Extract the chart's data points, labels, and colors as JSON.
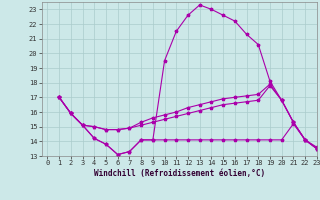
{
  "xlabel": "Windchill (Refroidissement éolien,°C)",
  "background_color": "#cce8e8",
  "grid_color": "#aacccc",
  "line_color": "#aa00aa",
  "ylim": [
    13,
    23.5
  ],
  "xlim": [
    -0.5,
    23
  ],
  "yticks": [
    13,
    14,
    15,
    16,
    17,
    18,
    19,
    20,
    21,
    22,
    23
  ],
  "xticks": [
    0,
    1,
    2,
    3,
    4,
    5,
    6,
    7,
    8,
    9,
    10,
    11,
    12,
    13,
    14,
    15,
    16,
    17,
    18,
    19,
    20,
    21,
    22,
    23
  ],
  "series": [
    [
      17.0,
      15.9,
      15.1,
      14.2,
      13.8,
      13.1,
      13.3,
      14.1,
      14.1,
      19.5,
      21.5,
      22.6,
      23.3,
      23.0,
      22.6,
      22.2,
      21.3,
      20.6,
      18.1,
      16.8,
      15.3,
      14.1,
      13.6
    ],
    [
      17.0,
      15.9,
      15.1,
      14.2,
      13.8,
      13.1,
      13.3,
      14.1,
      14.1,
      14.1,
      14.1,
      14.1,
      14.1,
      14.1,
      14.1,
      14.1,
      14.1,
      14.1,
      14.1,
      14.1,
      15.2,
      14.1,
      13.5
    ],
    [
      17.0,
      15.9,
      15.1,
      15.0,
      14.8,
      14.8,
      14.9,
      15.1,
      15.3,
      15.5,
      15.7,
      15.9,
      16.1,
      16.3,
      16.5,
      16.6,
      16.7,
      16.8,
      17.8,
      16.8,
      15.3,
      14.1,
      13.5
    ],
    [
      17.0,
      15.9,
      15.1,
      15.0,
      14.8,
      14.8,
      14.9,
      15.3,
      15.6,
      15.8,
      16.0,
      16.3,
      16.5,
      16.7,
      16.9,
      17.0,
      17.1,
      17.2,
      17.9,
      16.8,
      15.3,
      14.1,
      13.5
    ]
  ],
  "x_data": [
    1,
    2,
    3,
    4,
    5,
    6,
    7,
    8,
    9,
    10,
    11,
    12,
    13,
    14,
    15,
    16,
    17,
    18,
    19,
    20,
    21,
    22,
    23
  ]
}
